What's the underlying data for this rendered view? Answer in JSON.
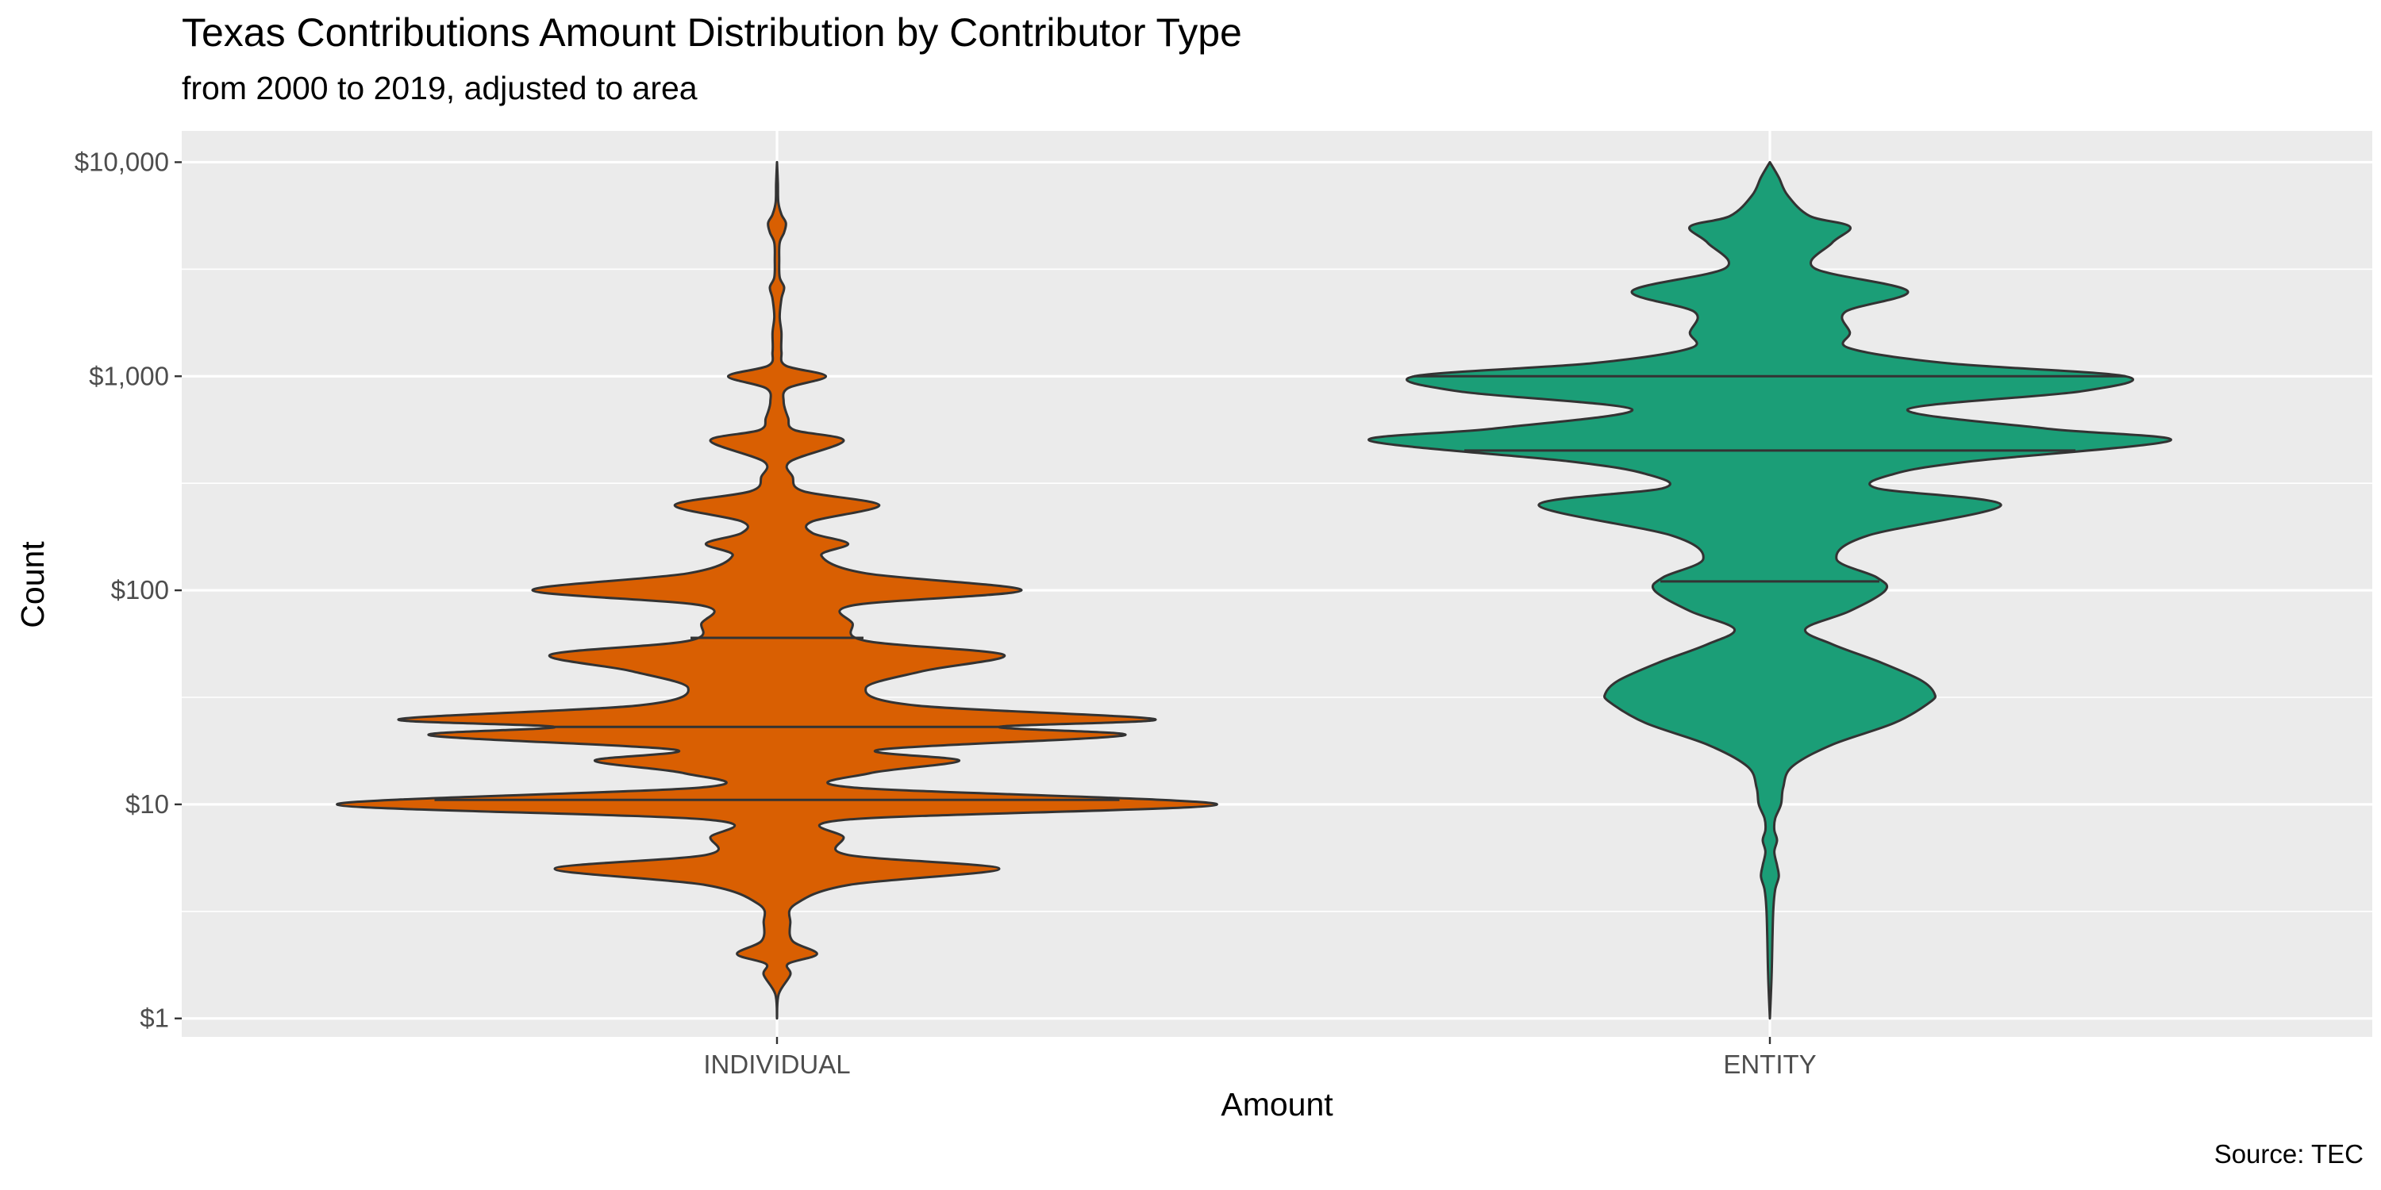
{
  "header": {
    "title": "Texas Contributions Amount Distribution by Contributor Type",
    "subtitle": "from 2000 to 2019, adjusted to area"
  },
  "caption": "Source: TEC",
  "colors": {
    "panel_bg": "#EBEBEB",
    "grid": "#FFFFFF",
    "outline": "#333333",
    "individual": "#D95F02",
    "entity": "#1B9E77"
  },
  "chart_data": {
    "type": "violin",
    "xlabel": "Amount",
    "ylabel": "Count",
    "y_scale": "log10",
    "ylim": [
      0.82,
      14000
    ],
    "y_ticks": [
      1,
      10,
      100,
      1000,
      10000
    ],
    "y_tick_labels": [
      "$1",
      "$10",
      "$100",
      "$1,000",
      "$10,000"
    ],
    "categories": [
      "INDIVIDUAL",
      "ENTITY"
    ],
    "grid": true,
    "legend": "none",
    "series": [
      {
        "category": "INDIVIDUAL",
        "quantiles": [
          10.5,
          23,
          60
        ],
        "profile": [
          [
            1,
            0.0
          ],
          [
            1.3,
            0.004
          ],
          [
            1.6,
            0.03
          ],
          [
            1.8,
            0.025
          ],
          [
            2.0,
            0.09
          ],
          [
            2.3,
            0.035
          ],
          [
            2.8,
            0.03
          ],
          [
            3.4,
            0.04
          ],
          [
            4.2,
            0.16
          ],
          [
            5.0,
            0.5
          ],
          [
            5.8,
            0.16
          ],
          [
            7.0,
            0.15
          ],
          [
            8.5,
            0.16
          ],
          [
            10,
            0.99
          ],
          [
            12,
            0.17
          ],
          [
            14,
            0.21
          ],
          [
            16,
            0.41
          ],
          [
            18,
            0.23
          ],
          [
            21,
            0.78
          ],
          [
            23,
            0.5
          ],
          [
            25,
            0.85
          ],
          [
            29,
            0.31
          ],
          [
            35,
            0.2
          ],
          [
            42,
            0.33
          ],
          [
            50,
            0.51
          ],
          [
            58,
            0.2
          ],
          [
            70,
            0.17
          ],
          [
            85,
            0.17
          ],
          [
            100,
            0.55
          ],
          [
            120,
            0.2
          ],
          [
            145,
            0.1
          ],
          [
            165,
            0.16
          ],
          [
            185,
            0.08
          ],
          [
            210,
            0.08
          ],
          [
            250,
            0.23
          ],
          [
            290,
            0.06
          ],
          [
            340,
            0.035
          ],
          [
            400,
            0.03
          ],
          [
            500,
            0.15
          ],
          [
            560,
            0.04
          ],
          [
            640,
            0.025
          ],
          [
            760,
            0.015
          ],
          [
            880,
            0.025
          ],
          [
            1000,
            0.11
          ],
          [
            1120,
            0.02
          ],
          [
            1300,
            0.01
          ],
          [
            1600,
            0.01
          ],
          [
            1900,
            0.006
          ],
          [
            2300,
            0.01
          ],
          [
            2600,
            0.016
          ],
          [
            2900,
            0.006
          ],
          [
            3500,
            0.005
          ],
          [
            4200,
            0.006
          ],
          [
            4700,
            0.016
          ],
          [
            5200,
            0.02
          ],
          [
            5700,
            0.01
          ],
          [
            6500,
            0.003
          ],
          [
            8000,
            0.002
          ],
          [
            10000,
            0.0
          ]
        ]
      },
      {
        "category": "ENTITY",
        "quantiles": [
          110,
          450,
          1000
        ],
        "profile": [
          [
            1,
            0.0
          ],
          [
            1.6,
            0.004
          ],
          [
            2.5,
            0.006
          ],
          [
            3.3,
            0.008
          ],
          [
            4.0,
            0.012
          ],
          [
            4.6,
            0.02
          ],
          [
            5.2,
            0.016
          ],
          [
            6.0,
            0.01
          ],
          [
            6.8,
            0.016
          ],
          [
            7.6,
            0.01
          ],
          [
            8.6,
            0.012
          ],
          [
            10,
            0.025
          ],
          [
            12,
            0.03
          ],
          [
            15,
            0.05
          ],
          [
            19,
            0.14
          ],
          [
            24,
            0.28
          ],
          [
            30,
            0.36
          ],
          [
            33,
            0.37
          ],
          [
            38,
            0.34
          ],
          [
            46,
            0.25
          ],
          [
            56,
            0.14
          ],
          [
            66,
            0.08
          ],
          [
            80,
            0.18
          ],
          [
            100,
            0.26
          ],
          [
            115,
            0.24
          ],
          [
            140,
            0.15
          ],
          [
            180,
            0.22
          ],
          [
            250,
            0.52
          ],
          [
            300,
            0.24
          ],
          [
            350,
            0.28
          ],
          [
            400,
            0.45
          ],
          [
            500,
            0.9
          ],
          [
            570,
            0.62
          ],
          [
            700,
            0.31
          ],
          [
            850,
            0.7
          ],
          [
            1000,
            0.8
          ],
          [
            1150,
            0.4
          ],
          [
            1350,
            0.18
          ],
          [
            1600,
            0.18
          ],
          [
            2000,
            0.17
          ],
          [
            2500,
            0.31
          ],
          [
            3200,
            0.1
          ],
          [
            4200,
            0.14
          ],
          [
            5000,
            0.18
          ],
          [
            5600,
            0.09
          ],
          [
            7000,
            0.04
          ],
          [
            8500,
            0.02
          ],
          [
            10000,
            0.0
          ]
        ]
      }
    ]
  }
}
